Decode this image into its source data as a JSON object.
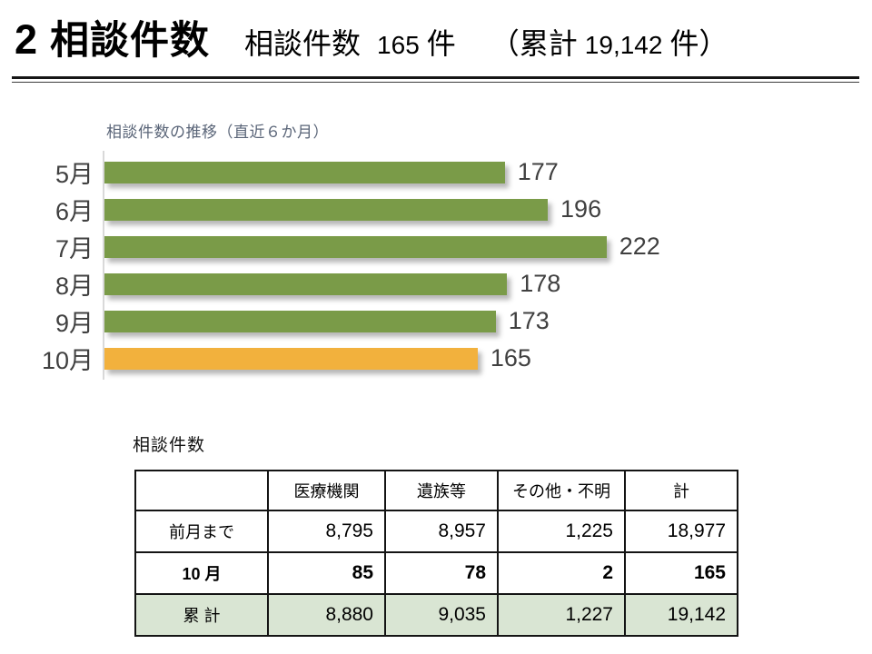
{
  "header": {
    "number": "2",
    "title": "相談件数",
    "subtitle": {
      "label": "相談件数",
      "value": "165",
      "unit": "件",
      "cum_open": "（累計",
      "cum_value": "19,142",
      "cum_close": "件）"
    }
  },
  "chart_data": {
    "type": "bar",
    "orientation": "horizontal",
    "title": "相談件数の推移（直近６か月）",
    "categories": [
      "5月",
      "6月",
      "7月",
      "8月",
      "9月",
      "10月"
    ],
    "values": [
      177,
      196,
      222,
      178,
      173,
      165
    ],
    "highlight_index": 5,
    "bar_color": "#7a9b48",
    "highlight_color": "#f2b13d",
    "label_color": "#404040",
    "xlim": [
      0,
      270
    ],
    "grid": false,
    "legend": false
  },
  "table": {
    "caption": "相談件数",
    "columns": [
      "",
      "医療機関",
      "遺族等",
      "その他・不明",
      "計"
    ],
    "rows": [
      {
        "label": "前月まで",
        "values": [
          "8,795",
          "8,957",
          "1,225",
          "18,977"
        ],
        "bold": false,
        "highlight": false
      },
      {
        "label": "10 月",
        "values": [
          "85",
          "78",
          "2",
          "165"
        ],
        "bold": true,
        "highlight": false
      },
      {
        "label": "累 計",
        "values": [
          "8,880",
          "9,035",
          "1,227",
          "19,142"
        ],
        "bold": false,
        "highlight": true
      }
    ],
    "highlight_color": "#d9e5d3"
  }
}
